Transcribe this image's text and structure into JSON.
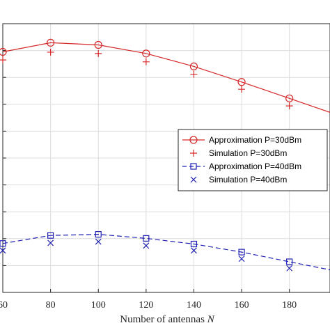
{
  "chart_data": {
    "type": "line",
    "title": "",
    "xlabel": "Number of antennas",
    "xlabel_symbol": "N",
    "ylabel": "",
    "xlim": [
      60,
      197
    ],
    "ylim": [
      0,
      100
    ],
    "x_ticks": [
      60,
      80,
      100,
      120,
      140,
      160,
      180
    ],
    "x_tick_labels": [
      "60",
      "80",
      "100",
      "120",
      "140",
      "160",
      "180"
    ],
    "y_ticks": [
      10,
      20,
      30,
      40,
      50,
      60,
      70,
      80,
      90
    ],
    "grid": true,
    "legend_position": "right",
    "series": [
      {
        "name": "Approximation P=30dBm",
        "style": "solid-line-circle",
        "color": "#d62728",
        "x": [
          60,
          80,
          100,
          120,
          140,
          160,
          180
        ],
        "values": [
          89.5,
          92.9,
          92.1,
          88.9,
          84.1,
          78.3,
          72.2
        ],
        "curve_extension": {
          "x": 197,
          "y": 67.0
        }
      },
      {
        "name": "Simulation P=30dBm",
        "style": "plus-marker",
        "color": "#d62728",
        "x": [
          60,
          80,
          100,
          120,
          140,
          160,
          180
        ],
        "values": [
          86.5,
          89.4,
          88.9,
          85.8,
          81.2,
          75.6,
          69.4
        ]
      },
      {
        "name": "Approximation P=40dBm",
        "style": "dashed-line-square",
        "color": "#1f1fb4",
        "x": [
          60,
          80,
          100,
          120,
          140,
          160,
          180
        ],
        "values": [
          18.2,
          21.2,
          21.6,
          20.1,
          18.0,
          15.0,
          11.4
        ],
        "curve_extension": {
          "x": 197,
          "y": 8.4
        }
      },
      {
        "name": "Simulation P=40dBm",
        "style": "x-marker",
        "color": "#1f1fb4",
        "x": [
          60,
          80,
          100,
          120,
          140,
          160,
          180
        ],
        "values": [
          15.6,
          18.4,
          18.9,
          17.4,
          15.6,
          12.5,
          9.0
        ]
      }
    ]
  }
}
